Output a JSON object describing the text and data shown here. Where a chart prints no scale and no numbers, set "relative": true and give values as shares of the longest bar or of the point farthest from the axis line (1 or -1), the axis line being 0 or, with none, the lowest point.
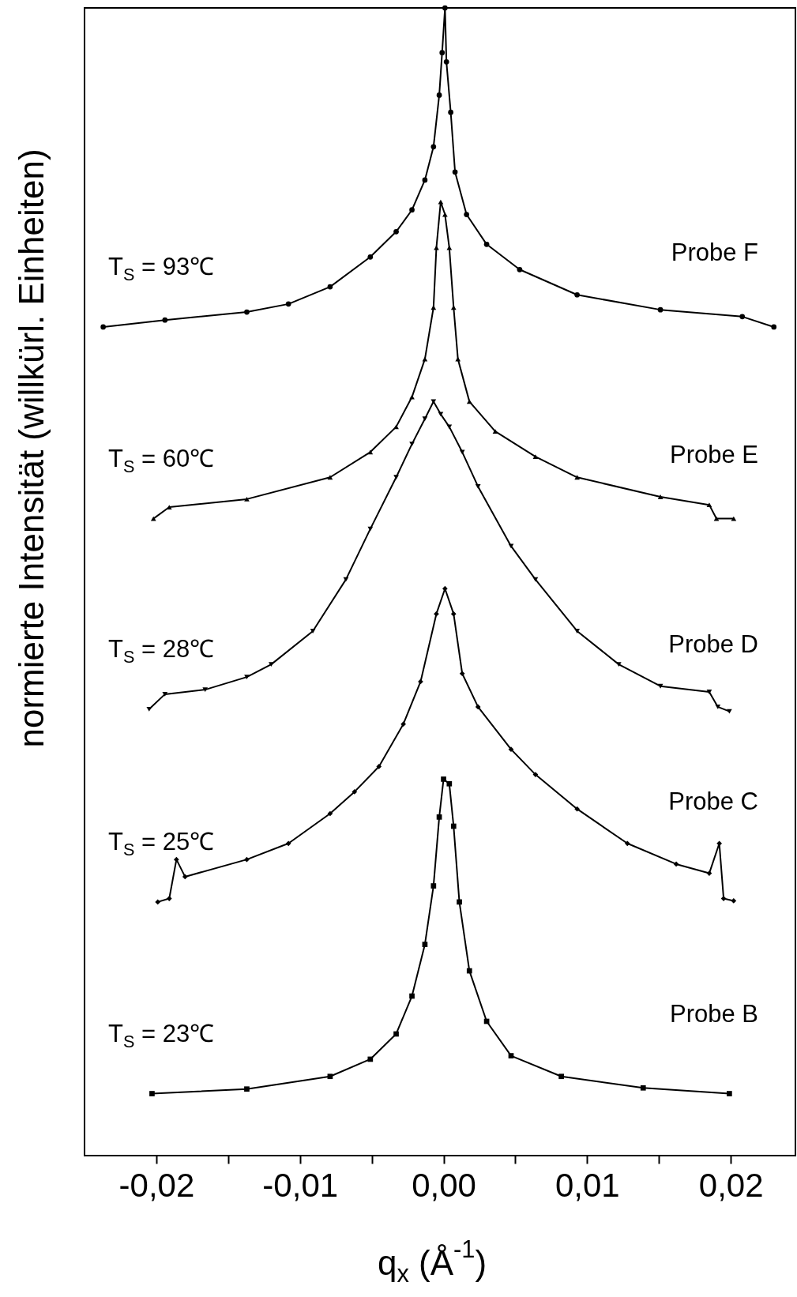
{
  "chart_data": {
    "type": "line",
    "relative": true,
    "xlabel": "q$_{x}$ (Å$^{-1}$)",
    "ylabel": "normierte Intensität (willkürl. Einheiten)",
    "xlim": [
      -0.025,
      0.0245
    ],
    "xticks": [
      {
        "value": -0.02,
        "label": "-0,02"
      },
      {
        "value": -0.015,
        "label": null
      },
      {
        "value": -0.01,
        "label": "-0,01"
      },
      {
        "value": -0.005,
        "label": null
      },
      {
        "value": 0,
        "label": "0,00"
      },
      {
        "value": 0.005,
        "label": null
      },
      {
        "value": 0.01,
        "label": "0,01"
      },
      {
        "value": 0.015,
        "label": null
      },
      {
        "value": 0.02,
        "label": "0,02"
      }
    ],
    "grid": false,
    "series": [
      {
        "name": "Probe F",
        "color": "#000000",
        "marker": "circle",
        "x": [
          -0.0237,
          -0.0194,
          -0.0137,
          -0.0108,
          -0.0079,
          -0.0051,
          -0.0033,
          -0.0022,
          -0.0013,
          -0.0007,
          -0.0003,
          -0.0001,
          0.0001,
          0.0002,
          0.0005,
          0.0008,
          0.0016,
          0.003,
          0.0053,
          0.0093,
          0.0151,
          0.0208,
          0.023
        ],
        "values": [
          0.722,
          0.728,
          0.735,
          0.742,
          0.757,
          0.783,
          0.805,
          0.824,
          0.85,
          0.879,
          0.924,
          0.961,
          1.0,
          0.953,
          0.909,
          0.857,
          0.82,
          0.794,
          0.772,
          0.75,
          0.737,
          0.731,
          0.722
        ]
      },
      {
        "name": "Probe E",
        "color": "#000000",
        "marker": "triangle",
        "x": [
          -0.0202,
          -0.0191,
          -0.0137,
          -0.0079,
          -0.0051,
          -0.0033,
          -0.0022,
          -0.0013,
          -0.0007,
          -0.0005,
          -0.0002,
          0.0001,
          0.0004,
          0.0007,
          0.001,
          0.0018,
          0.0036,
          0.0064,
          0.0093,
          0.0151,
          0.0185,
          0.019,
          0.0202
        ],
        "values": [
          0.555,
          0.565,
          0.572,
          0.591,
          0.613,
          0.635,
          0.661,
          0.694,
          0.739,
          0.791,
          0.831,
          0.82,
          0.791,
          0.739,
          0.694,
          0.657,
          0.631,
          0.609,
          0.591,
          0.574,
          0.567,
          0.555,
          0.555
        ]
      },
      {
        "name": "Probe D",
        "color": "#000000",
        "marker": "triangle-down",
        "x": [
          -0.0205,
          -0.0194,
          -0.0166,
          -0.0137,
          -0.012,
          -0.0091,
          -0.0068,
          -0.0051,
          -0.0033,
          -0.0022,
          -0.0013,
          -0.0007,
          -0.0002,
          0.0004,
          0.0013,
          0.0024,
          0.0047,
          0.0064,
          0.0093,
          0.0122,
          0.0151,
          0.0185,
          0.0191,
          0.0199
        ],
        "values": [
          0.389,
          0.402,
          0.406,
          0.417,
          0.428,
          0.457,
          0.502,
          0.546,
          0.591,
          0.62,
          0.642,
          0.657,
          0.646,
          0.635,
          0.613,
          0.583,
          0.531,
          0.502,
          0.457,
          0.428,
          0.409,
          0.404,
          0.391,
          0.387
        ]
      },
      {
        "name": "Probe C",
        "color": "#000000",
        "marker": "diamond",
        "x": [
          -0.0199,
          -0.0191,
          -0.0186,
          -0.018,
          -0.0137,
          -0.0108,
          -0.0079,
          -0.0062,
          -0.0045,
          -0.0028,
          -0.0016,
          -0.0005,
          0.0001,
          0.0007,
          0.0013,
          0.0024,
          0.0047,
          0.0064,
          0.0093,
          0.0128,
          0.0162,
          0.0185,
          0.0192,
          0.0195,
          0.0202
        ],
        "values": [
          0.221,
          0.224,
          0.258,
          0.243,
          0.258,
          0.272,
          0.298,
          0.317,
          0.339,
          0.376,
          0.413,
          0.472,
          0.494,
          0.472,
          0.42,
          0.391,
          0.354,
          0.332,
          0.302,
          0.272,
          0.254,
          0.246,
          0.272,
          0.224,
          0.222
        ]
      },
      {
        "name": "Probe B",
        "color": "#000000",
        "marker": "square",
        "x": [
          -0.0203,
          -0.0137,
          -0.0079,
          -0.0051,
          -0.0033,
          -0.0022,
          -0.0013,
          -0.0007,
          -0.0003,
          0,
          0.0004,
          0.0007,
          0.0011,
          0.0018,
          0.003,
          0.0047,
          0.0082,
          0.0139,
          0.0199
        ],
        "values": [
          0.054,
          0.058,
          0.069,
          0.084,
          0.106,
          0.139,
          0.184,
          0.235,
          0.295,
          0.328,
          0.324,
          0.287,
          0.221,
          0.161,
          0.117,
          0.087,
          0.069,
          0.059,
          0.054
        ]
      }
    ],
    "annotations": [
      "T$_{S}$ = 93℃",
      "T$_{S}$ = 60℃",
      "T$_{S}$ = 28℃",
      "T$_{S}$ = 25℃",
      "T$_{S}$ = 23℃"
    ]
  }
}
